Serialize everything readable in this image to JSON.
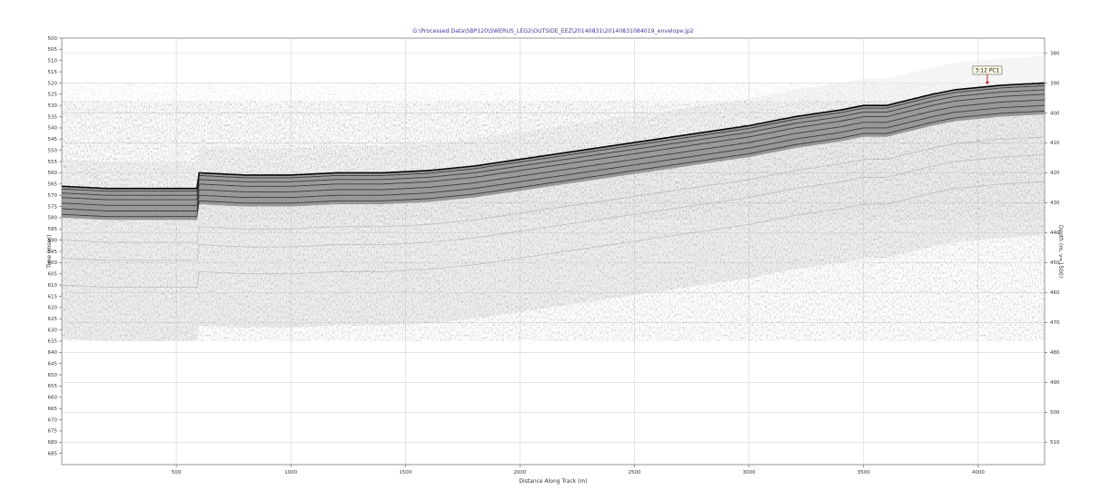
{
  "chart_data": {
    "type": "heatmap",
    "title": "G:\\Processed Data\\SBP120\\SWERUS_LEG2\\OUTSIDE_EEZ\\20140831\\20140831084019_envelope.jp2",
    "xlabel": "Distance Along Track (m)",
    "ylabel": "Time (msec)",
    "y2label": "Depth (m, v=1500)",
    "xlim": [
      0,
      4290
    ],
    "ylim": [
      500,
      690
    ],
    "y2lim": [
      375,
      517.5
    ],
    "x_ticks": [
      500,
      1000,
      1500,
      2000,
      2500,
      3000,
      3500,
      4000
    ],
    "y_ticks": [
      500,
      505,
      510,
      515,
      520,
      525,
      530,
      535,
      540,
      545,
      550,
      555,
      560,
      565,
      570,
      575,
      580,
      585,
      590,
      595,
      600,
      605,
      610,
      615,
      620,
      625,
      630,
      635,
      640,
      645,
      650,
      655,
      660,
      665,
      670,
      675,
      680,
      685
    ],
    "y2_ticks": [
      380,
      390,
      400,
      410,
      420,
      430,
      440,
      450,
      460,
      470,
      480,
      490,
      500,
      510
    ],
    "grid": true,
    "colormap": "grayscale",
    "seafloor_profile": {
      "x": [
        0,
        200,
        400,
        590,
        600,
        800,
        1000,
        1200,
        1400,
        1600,
        1800,
        2000,
        2200,
        2400,
        2600,
        2800,
        3000,
        3200,
        3400,
        3500,
        3600,
        3800,
        3900,
        4100,
        4290
      ],
      "time_ms": [
        566,
        567,
        567,
        567,
        560,
        561,
        561,
        560,
        560,
        559,
        557,
        554,
        551,
        548,
        545,
        542,
        539,
        535,
        532,
        530,
        530,
        525,
        523,
        521,
        520
      ]
    },
    "annotations": [
      {
        "label": "3:12 PC1",
        "x": 4040,
        "time_ms": 521
      }
    ]
  }
}
